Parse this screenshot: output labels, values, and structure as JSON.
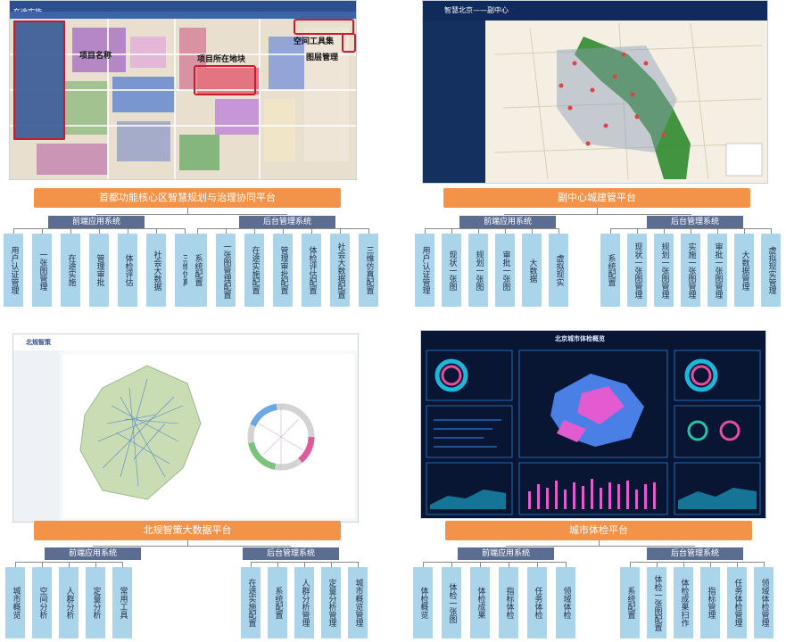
{
  "panels": [
    {
      "screenshot": {
        "title": "在途实施",
        "callouts": {
          "project": "项目名称",
          "plot": "项目所在地块",
          "tools": "空间工具集",
          "layers": "图层管理"
        }
      },
      "platform": "首都功能核心区智慧规划与治理协同平台",
      "groups": [
        {
          "label": "前端应用系统",
          "modules": [
            "用户认证管理",
            "一张图管理",
            "在途实施",
            "管理审批",
            "体检评估",
            "社会大数据",
            "三维仿真"
          ]
        },
        {
          "label": "后台管理系统",
          "modules": [
            "系统配置",
            "一张图管理配置",
            "在途实施配置",
            "管理审批配置",
            "体检评估配置",
            "社会大数据配置",
            "三维仿真配置"
          ]
        }
      ]
    },
    {
      "screenshot": {
        "title": "智慧北京——副中心"
      },
      "platform": "副中心城建管平台",
      "groups": [
        {
          "label": "前端应用系统",
          "modules": [
            "用户认证管理",
            "现状一张图",
            "规划一张图",
            "审批一张图",
            "大数据",
            "虚拟现实"
          ]
        },
        {
          "label": "后台管理系统",
          "modules": [
            "系统配置",
            "现状一张图管理",
            "规划一张图管理",
            "实施一张图管理",
            "审批一张图管理",
            "大数据管理",
            "虚拟现实管理"
          ]
        }
      ]
    },
    {
      "screenshot": {
        "title": "北规智策"
      },
      "platform": "北规智策大数据平台",
      "groups": [
        {
          "label": "前端应用系统",
          "modules": [
            "城市概览",
            "空间分析",
            "人群分析",
            "定量分析",
            "常用工具"
          ]
        },
        {
          "label": "后台管理系统",
          "modules": [
            "在途实施配置",
            "系统配置",
            "人群分析管理",
            "定量分析管理",
            "城市概览管理"
          ]
        }
      ]
    },
    {
      "screenshot": {
        "title": "北京城市体检概览"
      },
      "platform": "城市体检平台",
      "groups": [
        {
          "label": "前端应用系统",
          "modules": [
            "体检概览",
            "体检一张图",
            "体检成果",
            "指标体检",
            "任务体检",
            "领域体检"
          ]
        },
        {
          "label": "后台管理系统",
          "modules": [
            "系统配置",
            "体检一张图配置",
            "体检成果扫作",
            "指标管理",
            "任务体检管理",
            "领域体检管理"
          ]
        }
      ]
    }
  ]
}
